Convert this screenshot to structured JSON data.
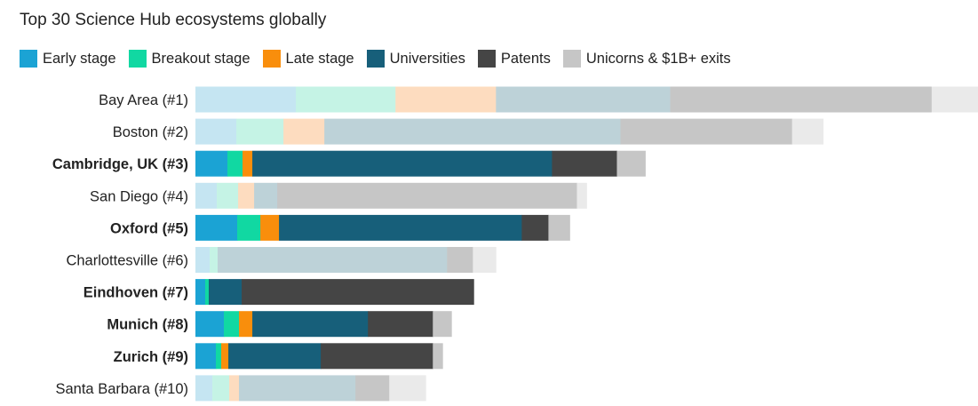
{
  "chart_data": {
    "type": "bar",
    "orientation": "horizontal",
    "stacked": true,
    "title": "Top 30 Science Hub ecosystems globally",
    "legend_position": "top-left",
    "grid": false,
    "series": [
      {
        "name": "Early stage",
        "color": "#1ba3d4",
        "faded_color": "#c5e5f2"
      },
      {
        "name": "Breakout stage",
        "color": "#11d8a2",
        "faded_color": "#c5f3e5"
      },
      {
        "name": "Late stage",
        "color": "#f98e0c",
        "faded_color": "#fddcbf"
      },
      {
        "name": "Universities",
        "color": "#175f7a",
        "faded_color": "#bdd2d8"
      },
      {
        "name": "Patents",
        "color": "#454545",
        "faded_color": "#c6c6c6"
      },
      {
        "name": "Unicorns & $1B+ exits",
        "color": "#c6c6c6",
        "faded_color": "#eaeaea"
      }
    ],
    "categories": [
      {
        "label": "Bay Area (#1)",
        "highlight": false,
        "values": [
          11.3,
          11.2,
          11.3,
          19.6,
          29.4,
          5.4
        ]
      },
      {
        "label": "Boston (#2)",
        "highlight": false,
        "values": [
          4.6,
          5.3,
          4.6,
          33.3,
          19.3,
          3.5
        ]
      },
      {
        "label": "Cambridge, UK (#3)",
        "highlight": true,
        "values": [
          3.6,
          1.7,
          1.1,
          33.7,
          7.3,
          3.2
        ]
      },
      {
        "label": "San Diego (#4)",
        "highlight": false,
        "values": [
          2.4,
          2.4,
          1.8,
          2.6,
          33.7,
          1.1
        ]
      },
      {
        "label": "Oxford (#5)",
        "highlight": true,
        "values": [
          4.7,
          2.6,
          2.1,
          27.3,
          3.0,
          2.4
        ]
      },
      {
        "label": "Charlottesville (#6)",
        "highlight": false,
        "values": [
          1.6,
          0.9,
          0.0,
          25.8,
          2.9,
          2.6
        ]
      },
      {
        "label": "Eindhoven (#7)",
        "highlight": true,
        "values": [
          1.1,
          0.4,
          0.0,
          3.7,
          26.1,
          0.0
        ]
      },
      {
        "label": "Munich (#8)",
        "highlight": true,
        "values": [
          3.2,
          1.7,
          1.5,
          13.0,
          7.3,
          2.1
        ]
      },
      {
        "label": "Zurich (#9)",
        "highlight": true,
        "values": [
          2.3,
          0.6,
          0.8,
          10.4,
          12.6,
          1.1
        ]
      },
      {
        "label": "Santa Barbara (#10)",
        "highlight": false,
        "values": [
          1.9,
          1.9,
          1.1,
          13.1,
          3.8,
          4.1
        ]
      }
    ]
  }
}
